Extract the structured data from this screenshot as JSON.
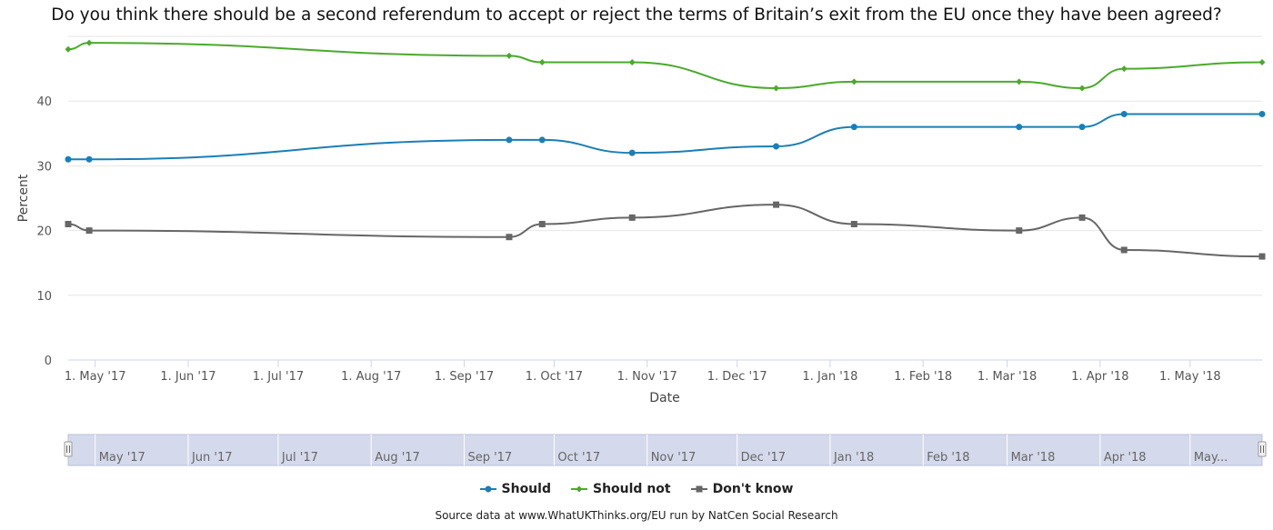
{
  "chart_data": {
    "type": "line",
    "title": "Do you think there should be a second referendum to accept or reject the terms of Britain’s exit from the EU once they have been agreed?",
    "xlabel": "Date",
    "ylabel": "Percent",
    "ylim": [
      0,
      50
    ],
    "yticks": [
      0,
      10,
      20,
      30,
      40
    ],
    "xlim": [
      "2017-04-22",
      "2018-05-25"
    ],
    "xticks": [
      {
        "date": "2017-05-01",
        "label": "1. May '17"
      },
      {
        "date": "2017-06-01",
        "label": "1. Jun '17"
      },
      {
        "date": "2017-07-01",
        "label": "1. Jul '17"
      },
      {
        "date": "2017-08-01",
        "label": "1. Aug '17"
      },
      {
        "date": "2017-09-01",
        "label": "1. Sep '17"
      },
      {
        "date": "2017-10-01",
        "label": "1. Oct '17"
      },
      {
        "date": "2017-11-01",
        "label": "1. Nov '17"
      },
      {
        "date": "2017-12-01",
        "label": "1. Dec '17"
      },
      {
        "date": "2018-01-01",
        "label": "1. Jan '18"
      },
      {
        "date": "2018-02-01",
        "label": "1. Feb '18"
      },
      {
        "date": "2018-03-01",
        "label": "1. Mar '18"
      },
      {
        "date": "2018-04-01",
        "label": "1. Apr '18"
      },
      {
        "date": "2018-05-01",
        "label": "1. May '18"
      }
    ],
    "grid": true,
    "legend_position": "bottom-center",
    "series": [
      {
        "name": "Should",
        "color": "#1a7fb5",
        "marker": "circle",
        "x": [
          "2017-04-22",
          "2017-04-29",
          "2017-09-16",
          "2017-09-27",
          "2017-10-27",
          "2017-12-14",
          "2018-01-09",
          "2018-03-05",
          "2018-03-26",
          "2018-04-09",
          "2018-05-25"
        ],
        "values": [
          31,
          31,
          34,
          34,
          32,
          33,
          36,
          36,
          36,
          38,
          38
        ]
      },
      {
        "name": "Should not",
        "color": "#4aaa2c",
        "marker": "diamond",
        "x": [
          "2017-04-22",
          "2017-04-29",
          "2017-09-16",
          "2017-09-27",
          "2017-10-27",
          "2017-12-14",
          "2018-01-09",
          "2018-03-05",
          "2018-03-26",
          "2018-04-09",
          "2018-05-25"
        ],
        "values": [
          48,
          49,
          47,
          46,
          46,
          42,
          43,
          43,
          42,
          45,
          46
        ]
      },
      {
        "name": "Don't know",
        "color": "#666666",
        "marker": "square",
        "x": [
          "2017-04-22",
          "2017-04-29",
          "2017-09-16",
          "2017-09-27",
          "2017-10-27",
          "2017-12-14",
          "2018-01-09",
          "2018-03-05",
          "2018-03-26",
          "2018-04-09",
          "2018-05-25"
        ],
        "values": [
          21,
          20,
          19,
          21,
          22,
          24,
          21,
          20,
          22,
          17,
          16
        ]
      }
    ]
  },
  "navigator": {
    "labels": [
      {
        "date": "2017-05-01",
        "label": "May '17"
      },
      {
        "date": "2017-06-01",
        "label": "Jun '17"
      },
      {
        "date": "2017-07-01",
        "label": "Jul '17"
      },
      {
        "date": "2017-08-01",
        "label": "Aug '17"
      },
      {
        "date": "2017-09-01",
        "label": "Sep '17"
      },
      {
        "date": "2017-10-01",
        "label": "Oct '17"
      },
      {
        "date": "2017-11-01",
        "label": "Nov '17"
      },
      {
        "date": "2017-12-01",
        "label": "Dec '17"
      },
      {
        "date": "2018-01-01",
        "label": "Jan '18"
      },
      {
        "date": "2018-02-01",
        "label": "Feb '18"
      },
      {
        "date": "2018-03-01",
        "label": "Mar '18"
      },
      {
        "date": "2018-04-01",
        "label": "Apr '18"
      },
      {
        "date": "2018-05-01",
        "label": "May..."
      }
    ],
    "mask_color": "#d4daeb",
    "handle_glyph": "II"
  },
  "source": "Source data at www.WhatUKThinks.org/EU run by NatCen Social Research"
}
